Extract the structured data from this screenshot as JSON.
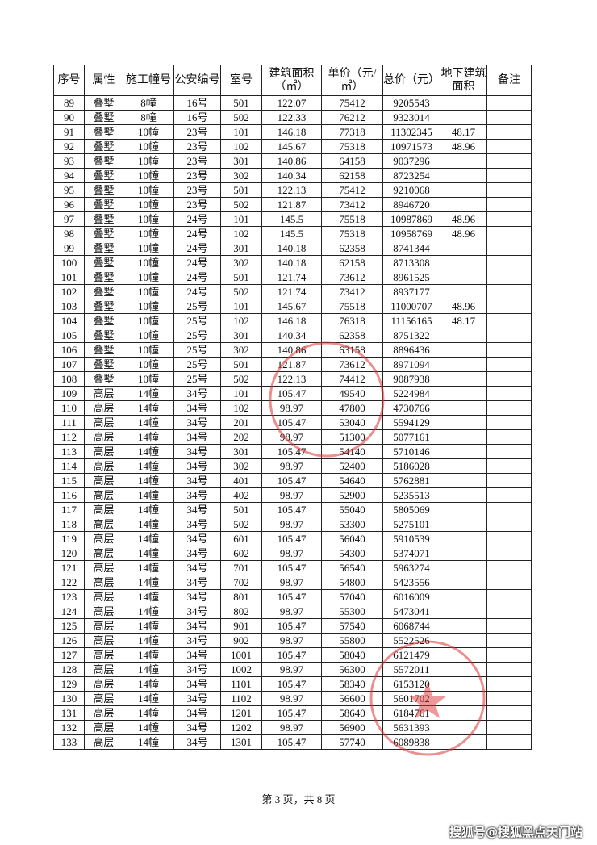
{
  "table": {
    "header": [
      "序号",
      "属性",
      "施工幢号",
      "公安编号",
      "室号",
      "建筑面积（㎡）",
      "单价（元/㎡）",
      "总价（元）",
      "地下建筑面积",
      "备注"
    ],
    "rows": [
      [
        "89",
        "叠墅",
        "8幢",
        "16号",
        "501",
        "122.07",
        "75412",
        "9205543",
        null,
        null
      ],
      [
        "90",
        "叠墅",
        "8幢",
        "16号",
        "502",
        "122.33",
        "76212",
        "9323014",
        null,
        null
      ],
      [
        "91",
        "叠墅",
        "10幢",
        "23号",
        "101",
        "146.18",
        "77318",
        "11302345",
        "48.17",
        null
      ],
      [
        "92",
        "叠墅",
        "10幢",
        "23号",
        "102",
        "145.67",
        "75318",
        "10971573",
        "48.96",
        null
      ],
      [
        "93",
        "叠墅",
        "10幢",
        "23号",
        "301",
        "140.86",
        "64158",
        "9037296",
        null,
        null
      ],
      [
        "94",
        "叠墅",
        "10幢",
        "23号",
        "302",
        "140.34",
        "62158",
        "8723254",
        null,
        null
      ],
      [
        "95",
        "叠墅",
        "10幢",
        "23号",
        "501",
        "122.13",
        "75412",
        "9210068",
        null,
        null
      ],
      [
        "96",
        "叠墅",
        "10幢",
        "23号",
        "502",
        "121.87",
        "73412",
        "8946720",
        null,
        null
      ],
      [
        "97",
        "叠墅",
        "10幢",
        "24号",
        "101",
        "145.5",
        "75518",
        "10987869",
        "48.96",
        null
      ],
      [
        "98",
        "叠墅",
        "10幢",
        "24号",
        "102",
        "145.5",
        "75318",
        "10958769",
        "48.96",
        null
      ],
      [
        "99",
        "叠墅",
        "10幢",
        "24号",
        "301",
        "140.18",
        "62358",
        "8741344",
        null,
        null
      ],
      [
        "100",
        "叠墅",
        "10幢",
        "24号",
        "302",
        "140.18",
        "62158",
        "8713308",
        null,
        null
      ],
      [
        "101",
        "叠墅",
        "10幢",
        "24号",
        "501",
        "121.74",
        "73612",
        "8961525",
        null,
        null
      ],
      [
        "102",
        "叠墅",
        "10幢",
        "24号",
        "502",
        "121.74",
        "73412",
        "8937177",
        null,
        null
      ],
      [
        "103",
        "叠墅",
        "10幢",
        "25号",
        "101",
        "145.67",
        "75518",
        "11000707",
        "48.96",
        null
      ],
      [
        "104",
        "叠墅",
        "10幢",
        "25号",
        "102",
        "146.18",
        "76318",
        "11156165",
        "48.17",
        null
      ],
      [
        "105",
        "叠墅",
        "10幢",
        "25号",
        "301",
        "140.34",
        "62358",
        "8751322",
        null,
        null
      ],
      [
        "106",
        "叠墅",
        "10幢",
        "25号",
        "302",
        "140.86",
        "63158",
        "8896436",
        null,
        null
      ],
      [
        "107",
        "叠墅",
        "10幢",
        "25号",
        "501",
        "121.87",
        "73612",
        "8971094",
        null,
        null
      ],
      [
        "108",
        "叠墅",
        "10幢",
        "25号",
        "502",
        "122.13",
        "74412",
        "9087938",
        null,
        null
      ],
      [
        "109",
        "高层",
        "14幢",
        "34号",
        "101",
        "105.47",
        "49540",
        "5224984",
        null,
        null
      ],
      [
        "110",
        "高层",
        "14幢",
        "34号",
        "102",
        "98.97",
        "47800",
        "4730766",
        null,
        null
      ],
      [
        "111",
        "高层",
        "14幢",
        "34号",
        "201",
        "105.47",
        "53040",
        "5594129",
        null,
        null
      ],
      [
        "112",
        "高层",
        "14幢",
        "34号",
        "202",
        "98.97",
        "51300",
        "5077161",
        null,
        null
      ],
      [
        "113",
        "高层",
        "14幢",
        "34号",
        "301",
        "105.47",
        "54140",
        "5710146",
        null,
        null
      ],
      [
        "114",
        "高层",
        "14幢",
        "34号",
        "302",
        "98.97",
        "52400",
        "5186028",
        null,
        null
      ],
      [
        "115",
        "高层",
        "14幢",
        "34号",
        "401",
        "105.47",
        "54640",
        "5762881",
        null,
        null
      ],
      [
        "116",
        "高层",
        "14幢",
        "34号",
        "402",
        "98.97",
        "52900",
        "5235513",
        null,
        null
      ],
      [
        "117",
        "高层",
        "14幢",
        "34号",
        "501",
        "105.47",
        "55040",
        "5805069",
        null,
        null
      ],
      [
        "118",
        "高层",
        "14幢",
        "34号",
        "502",
        "98.97",
        "53300",
        "5275101",
        null,
        null
      ],
      [
        "119",
        "高层",
        "14幢",
        "34号",
        "601",
        "105.47",
        "56040",
        "5910539",
        null,
        null
      ],
      [
        "120",
        "高层",
        "14幢",
        "34号",
        "602",
        "98.97",
        "54300",
        "5374071",
        null,
        null
      ],
      [
        "121",
        "高层",
        "14幢",
        "34号",
        "701",
        "105.47",
        "56540",
        "5963274",
        null,
        null
      ],
      [
        "122",
        "高层",
        "14幢",
        "34号",
        "702",
        "98.97",
        "54800",
        "5423556",
        null,
        null
      ],
      [
        "123",
        "高层",
        "14幢",
        "34号",
        "801",
        "105.47",
        "57040",
        "6016009",
        null,
        null
      ],
      [
        "124",
        "高层",
        "14幢",
        "34号",
        "802",
        "98.97",
        "55300",
        "5473041",
        null,
        null
      ],
      [
        "125",
        "高层",
        "14幢",
        "34号",
        "901",
        "105.47",
        "57540",
        "6068744",
        null,
        null
      ],
      [
        "126",
        "高层",
        "14幢",
        "34号",
        "902",
        "98.97",
        "55800",
        "5522526",
        null,
        null
      ],
      [
        "127",
        "高层",
        "14幢",
        "34号",
        "1001",
        "105.47",
        "58040",
        "6121479",
        null,
        null
      ],
      [
        "128",
        "高层",
        "14幢",
        "34号",
        "1002",
        "98.97",
        "56300",
        "5572011",
        null,
        null
      ],
      [
        "129",
        "高层",
        "14幢",
        "34号",
        "1101",
        "105.47",
        "58340",
        "6153120",
        null,
        null
      ],
      [
        "130",
        "高层",
        "14幢",
        "34号",
        "1102",
        "98.97",
        "56600",
        "5601702",
        null,
        null
      ],
      [
        "131",
        "高层",
        "14幢",
        "34号",
        "1201",
        "105.47",
        "58640",
        "6184761",
        null,
        null
      ],
      [
        "132",
        "高层",
        "14幢",
        "34号",
        "1202",
        "98.97",
        "56900",
        "5631393",
        null,
        null
      ],
      [
        "133",
        "高层",
        "14幢",
        "34号",
        "1301",
        "105.47",
        "57740",
        "6089838",
        null,
        null
      ]
    ]
  },
  "footer": "第 3 页，共 8 页",
  "watermark": "搜狐号@搜狐黑点天门站"
}
